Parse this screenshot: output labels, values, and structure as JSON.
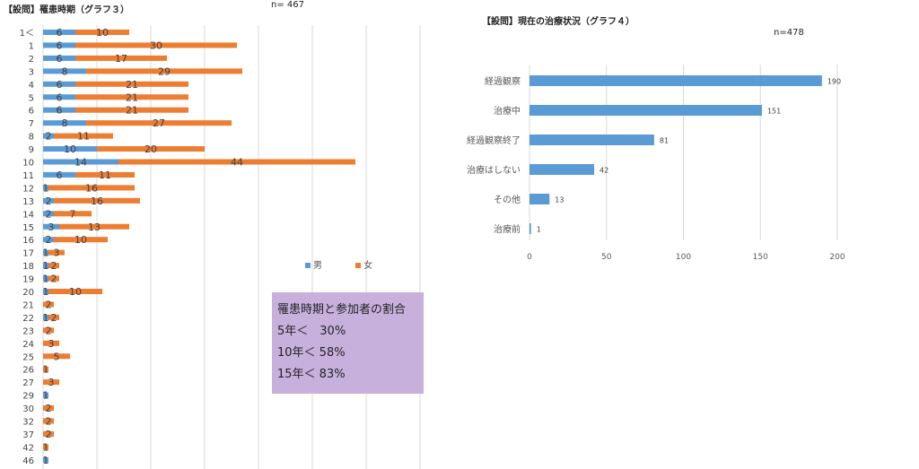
{
  "chart_data": [
    {
      "type": "bar",
      "orientation": "horizontal",
      "stacked": true,
      "title": "【設問】罹患時期（グラフ３）",
      "n_label": "n= 467",
      "categories": [
        "1＜",
        "1",
        "2",
        "3",
        "4",
        "5",
        "6",
        "7",
        "8",
        "9",
        "10",
        "11",
        "12",
        "13",
        "14",
        "15",
        "16",
        "17",
        "18",
        "19",
        "20",
        "21",
        "22",
        "23",
        "24",
        "25",
        "26",
        "27",
        "29",
        "30",
        "32",
        "37",
        "42",
        "46"
      ],
      "series": [
        {
          "name": "男",
          "color": "#5b9bd5",
          "values": [
            6,
            6,
            6,
            8,
            6,
            6,
            6,
            8,
            2,
            10,
            14,
            6,
            1,
            2,
            2,
            3,
            2,
            1,
            1,
            1,
            1,
            0,
            1,
            0,
            0,
            0,
            0,
            0,
            1,
            0,
            0,
            0,
            0,
            1
          ]
        },
        {
          "name": "女",
          "color": "#ed7d31",
          "values": [
            10,
            30,
            17,
            29,
            21,
            21,
            21,
            27,
            11,
            20,
            44,
            11,
            16,
            16,
            7,
            13,
            10,
            3,
            2,
            2,
            10,
            2,
            2,
            2,
            3,
            5,
            1,
            3,
            0,
            2,
            2,
            2,
            1,
            0
          ]
        }
      ],
      "legend_position": "right"
    },
    {
      "type": "bar",
      "orientation": "horizontal",
      "title": "【設問】現在の治療状況（グラフ４）",
      "n_label": "n=478",
      "categories": [
        "経過観察",
        "治療中",
        "経過観察終了",
        "治療はしない",
        "その他",
        "治療前"
      ],
      "values": [
        190,
        151,
        81,
        42,
        13,
        1
      ],
      "color": "#5b9bd5",
      "xlim": [
        0,
        200
      ],
      "x_ticks": [
        "0",
        "50",
        "100",
        "150",
        "200"
      ],
      "grid": true
    }
  ],
  "info_box": {
    "lines": [
      "罹患時期と参加者の割合",
      "5年＜　30%",
      "10年＜ 58%",
      "15年＜ 83%"
    ],
    "color": "#c8b0dd"
  }
}
